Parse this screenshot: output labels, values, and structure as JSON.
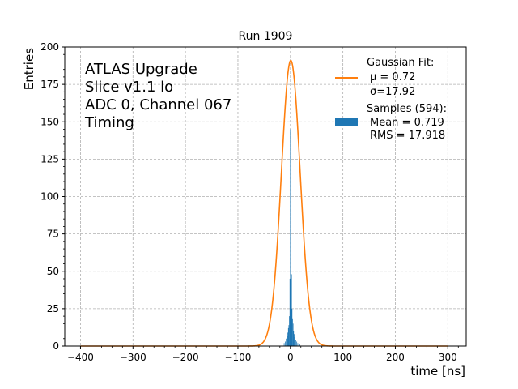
{
  "chart_data": {
    "type": "histogram",
    "title": "Run 1909",
    "xlabel": "time [ns]",
    "ylabel": "Entries",
    "xlim": [
      -430,
      335
    ],
    "ylim": [
      0,
      200
    ],
    "xticks": [
      -400,
      -300,
      -200,
      -100,
      0,
      100,
      200,
      300
    ],
    "xtick_labels": [
      "−400",
      "−300",
      "−200",
      "−100",
      "0",
      "100",
      "200",
      "300"
    ],
    "yticks": [
      0,
      25,
      50,
      75,
      100,
      125,
      150,
      175,
      200
    ],
    "ytick_labels": [
      "0",
      "25",
      "50",
      "75",
      "100",
      "125",
      "150",
      "175",
      "200"
    ],
    "grid": true,
    "annotation_lines": [
      "ATLAS Upgrade",
      "Slice v1.1 lo",
      "ADC 0, Channel 067",
      "Timing"
    ],
    "legend": {
      "placement": "top-right",
      "fit_title": "Gaussian Fit:",
      "fit_mu": "μ = 0.72",
      "fit_sigma": "σ=17.92",
      "samples_title": "Samples (594):",
      "samples_mean": "Mean = 0.719",
      "samples_rms": "RMS = 17.918"
    },
    "colors": {
      "fit": "#ff7f0e",
      "bars": "#1f77b4",
      "grid": "#b0b0b0"
    },
    "fit": {
      "amplitude": 191,
      "mu": 0.72,
      "sigma": 17.92,
      "x_range": [
        -400,
        300
      ]
    },
    "histogram": {
      "bin_width": 1,
      "bins": [
        {
          "x": -16,
          "count": 1
        },
        {
          "x": -12,
          "count": 2
        },
        {
          "x": -10,
          "count": 3
        },
        {
          "x": -8,
          "count": 5
        },
        {
          "x": -6,
          "count": 7
        },
        {
          "x": -5,
          "count": 9
        },
        {
          "x": -4,
          "count": 12
        },
        {
          "x": -3,
          "count": 14
        },
        {
          "x": -2,
          "count": 20
        },
        {
          "x": -1,
          "count": 45
        },
        {
          "x": 0,
          "count": 145
        },
        {
          "x": 1,
          "count": 95
        },
        {
          "x": 2,
          "count": 48
        },
        {
          "x": 3,
          "count": 25
        },
        {
          "x": 4,
          "count": 18
        },
        {
          "x": 5,
          "count": 15
        },
        {
          "x": 6,
          "count": 10
        },
        {
          "x": 7,
          "count": 8
        },
        {
          "x": 8,
          "count": 6
        },
        {
          "x": 10,
          "count": 4
        },
        {
          "x": 12,
          "count": 3
        },
        {
          "x": 14,
          "count": 2
        },
        {
          "x": 18,
          "count": 1
        }
      ]
    }
  }
}
